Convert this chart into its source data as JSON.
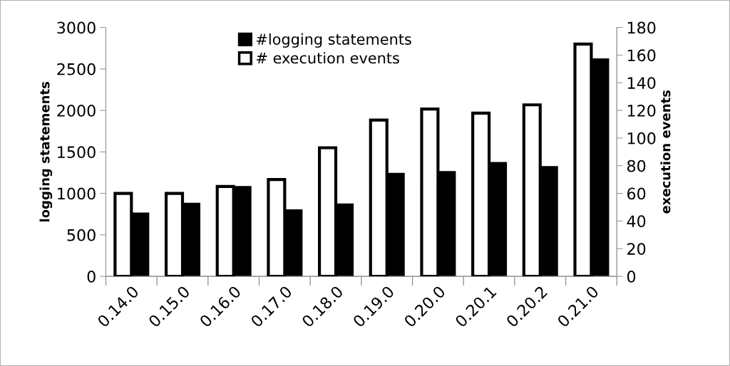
{
  "chart_data": {
    "type": "bar",
    "ylabel": "logging statements",
    "y2label": "execution events",
    "categories": [
      "0.14.0",
      "0.15.0",
      "0.16.0",
      "0.17.0",
      "0.18.0",
      "0.19.0",
      "0.20.0",
      "0.20.1",
      "0.20.2",
      "0.21.0"
    ],
    "series": [
      {
        "name": "#logging statements",
        "color": "#000000",
        "values": [
          750,
          870,
          1070,
          790,
          860,
          1230,
          1250,
          1360,
          1310,
          2610
        ]
      },
      {
        "name": "# execution events",
        "color": "#ffffff",
        "axis": "y2",
        "values": [
          60,
          60,
          65,
          70,
          93,
          113,
          121,
          118,
          124,
          168
        ]
      }
    ],
    "ylim": [
      0,
      3000
    ],
    "yticks": [
      0,
      500,
      1000,
      1500,
      2000,
      2500,
      3000
    ],
    "y2lim": [
      0,
      180
    ],
    "y2ticks": [
      0,
      20,
      40,
      60,
      80,
      100,
      120,
      140,
      160,
      180
    ],
    "legend": "top",
    "grid": false
  }
}
